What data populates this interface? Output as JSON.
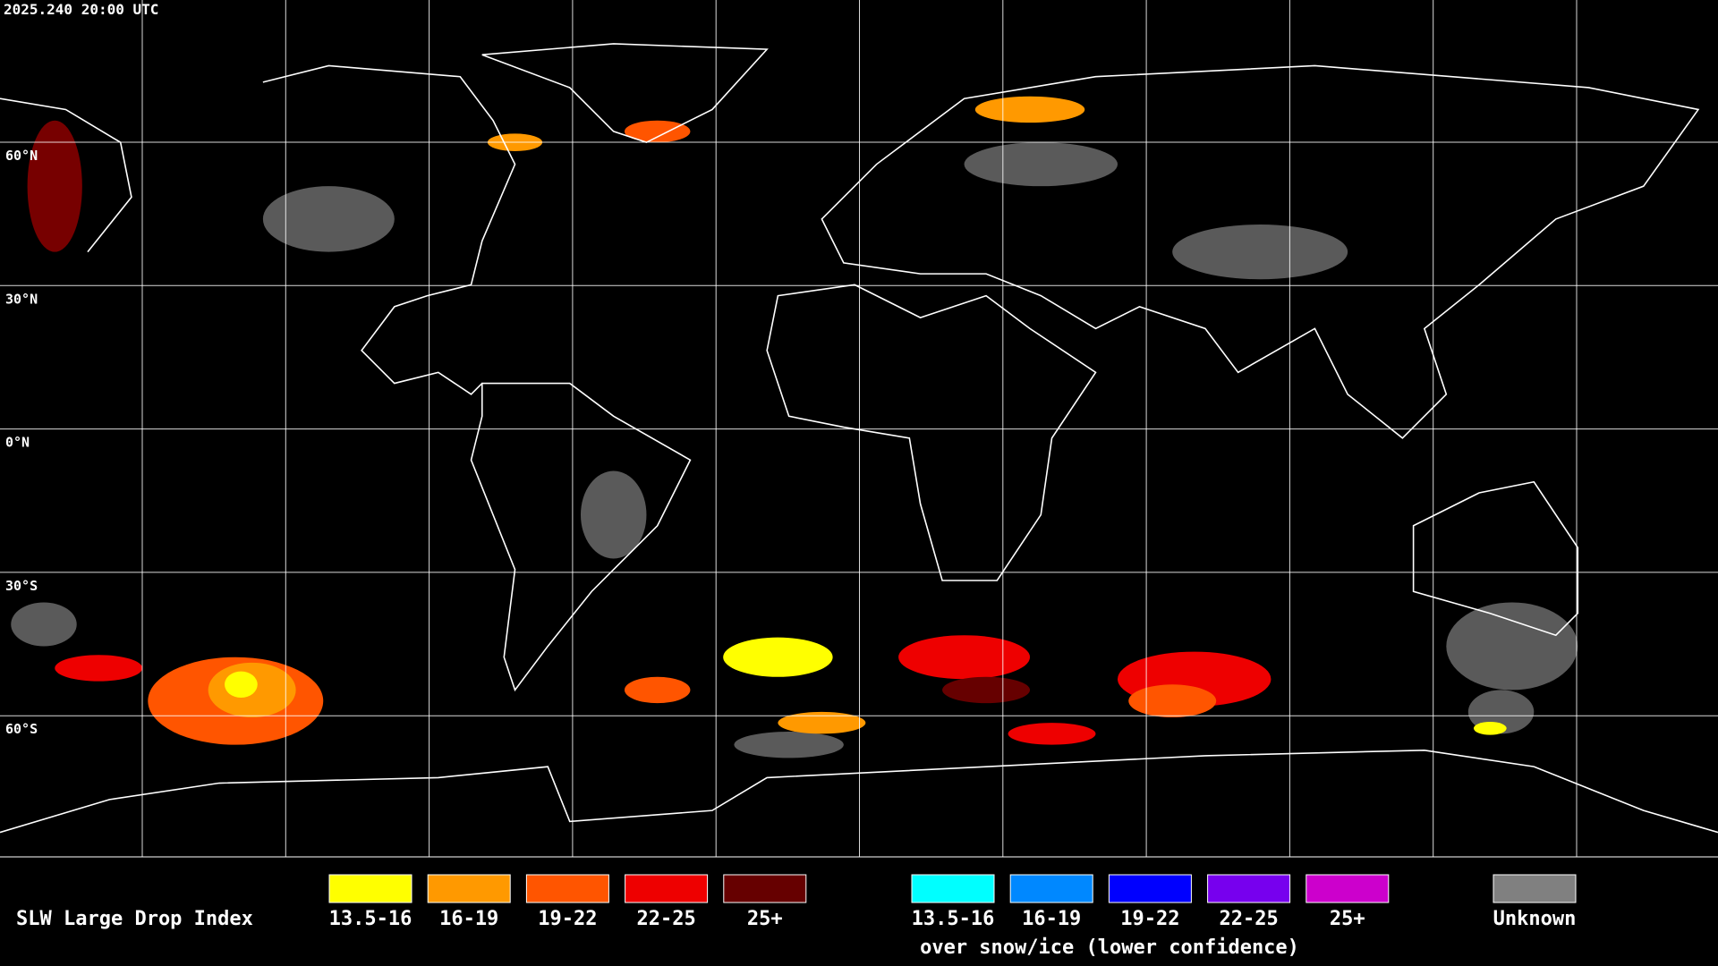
{
  "header": {
    "timestamp": "2025.240 20:00 UTC"
  },
  "map": {
    "lat_labels": [
      "60°N",
      "30°N",
      "0°N",
      "30°S",
      "60°S"
    ]
  },
  "legend": {
    "title": "SLW Large Drop Index",
    "items": [
      {
        "label": "13.5-16",
        "color": "#ffff00"
      },
      {
        "label": "16-19",
        "color": "#ff9900"
      },
      {
        "label": "19-22",
        "color": "#ff5500"
      },
      {
        "label": "22-25",
        "color": "#ee0000"
      },
      {
        "label": "25+",
        "color": "#660000"
      }
    ],
    "snow_items": [
      {
        "label": "13.5-16",
        "color": "#00ffff"
      },
      {
        "label": "16-19",
        "color": "#0088ff"
      },
      {
        "label": "19-22",
        "color": "#0000ff"
      },
      {
        "label": "22-25",
        "color": "#7700ee"
      },
      {
        "label": "25+",
        "color": "#cc00cc"
      }
    ],
    "snow_note": "over snow/ice (lower confidence)",
    "unknown": {
      "label": "Unknown",
      "color": "#808080"
    }
  }
}
